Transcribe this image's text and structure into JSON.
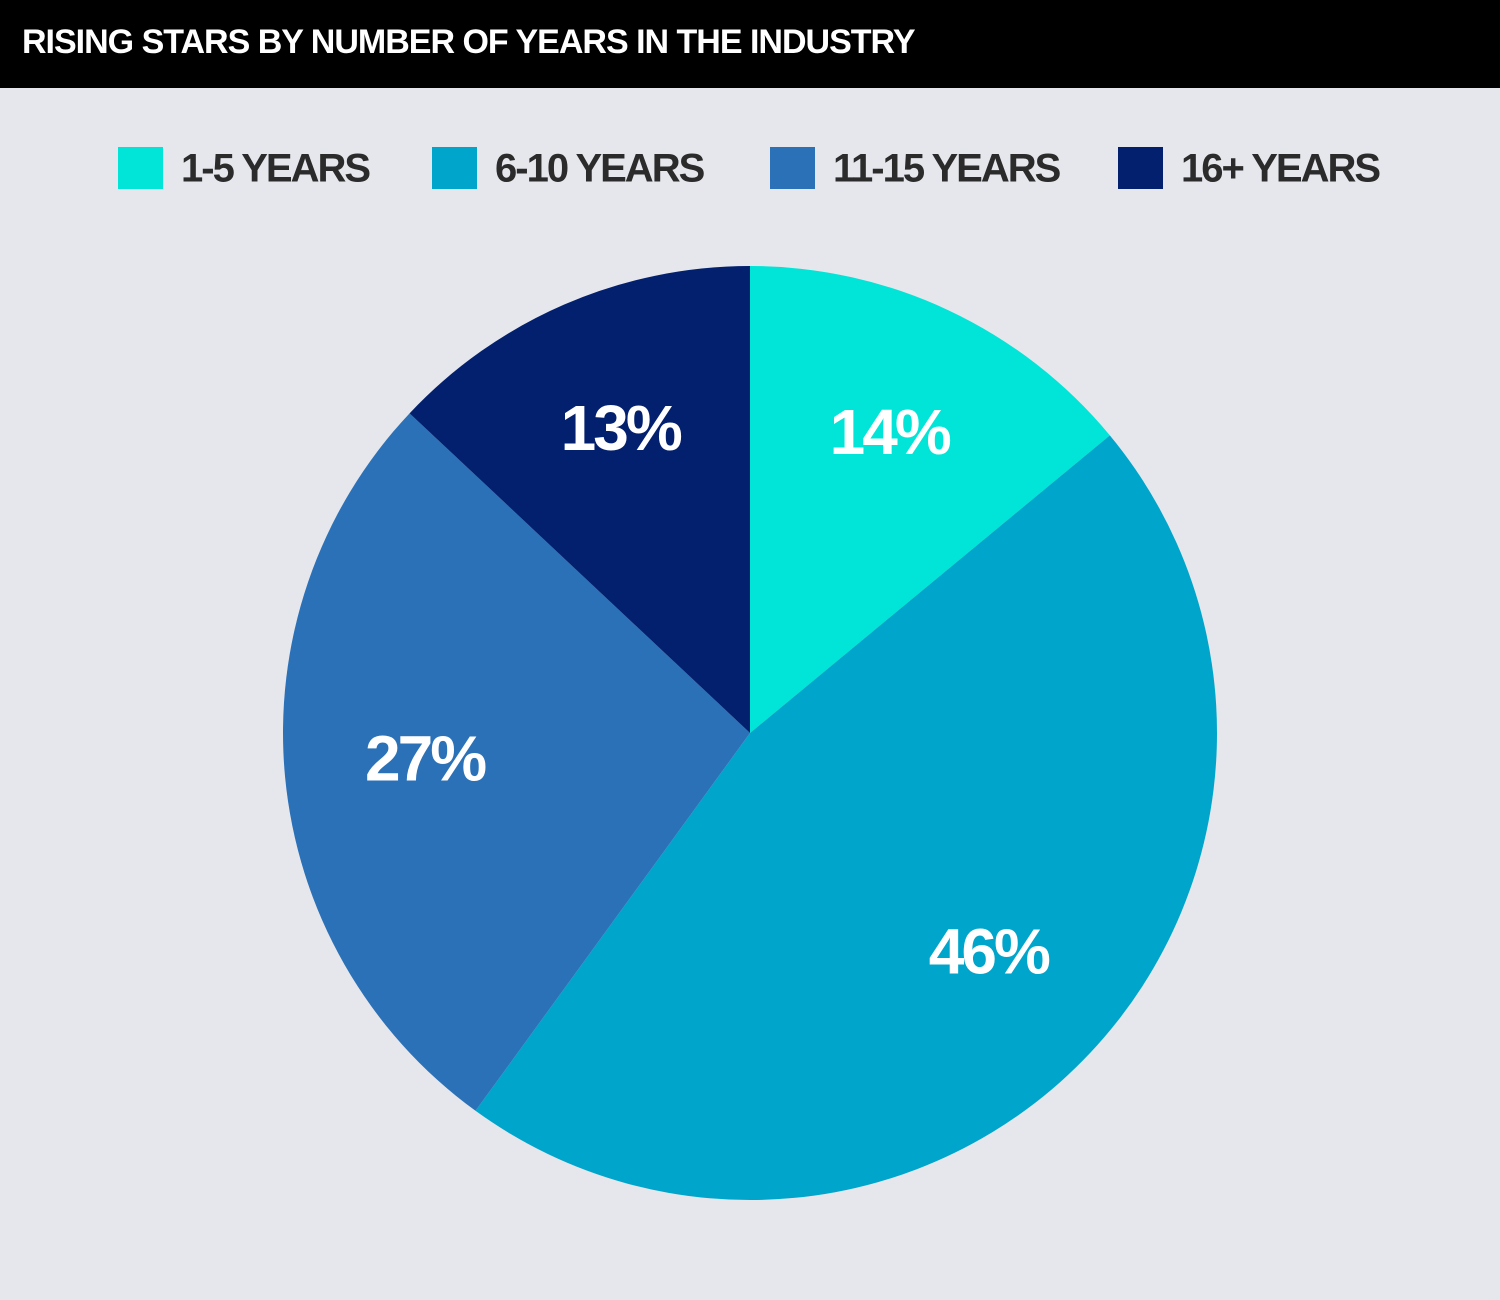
{
  "chart_data": {
    "type": "pie",
    "title": "RISING STARS BY NUMBER OF YEARS IN THE INDUSTRY",
    "categories": [
      "1-5 YEARS",
      "6-10 YEARS",
      "11-15 YEARS",
      "16+ YEARS"
    ],
    "values": [
      14,
      46,
      27,
      13
    ],
    "value_labels": [
      "14%",
      "46%",
      "27%",
      "13%"
    ],
    "colors": [
      "#00e5d8",
      "#00a5cb",
      "#2b71b8",
      "#03206e"
    ]
  }
}
